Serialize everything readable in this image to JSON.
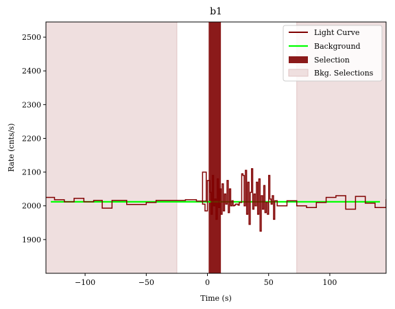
{
  "chart_data": {
    "type": "line",
    "title": "b1",
    "xlabel": "Time (s)",
    "ylabel": "Rate (cnts/s)",
    "xlim": [
      -132,
      146
    ],
    "ylim": [
      1800,
      2545
    ],
    "xticks": [
      -100,
      -50,
      0,
      50,
      100
    ],
    "yticks": [
      1900,
      2000,
      2100,
      2200,
      2300,
      2400,
      2500
    ],
    "grid": false,
    "legend_position": "top-right",
    "legend": [
      "Light Curve",
      "Background",
      "Selection",
      "Bkg. Selections"
    ],
    "colors": {
      "light_curve": "#800000",
      "background": "#00ff00",
      "selection": "#8b1a1a",
      "bkg_selection": "#efdfdf",
      "bkg_selection_edge": "#e0c4c4"
    },
    "background_level": 2012,
    "selection_range": [
      1,
      11
    ],
    "bkg_selection_ranges": [
      [
        -132,
        -25
      ],
      [
        73,
        146
      ]
    ],
    "light_curve": {
      "x": [
        -132,
        -125,
        -117,
        -109,
        -101,
        -93,
        -86,
        -78,
        -74,
        -66,
        -58,
        -50,
        -42,
        -34,
        -26,
        -18,
        -9,
        -1,
        -4,
        -2,
        0,
        2,
        3,
        4,
        5,
        6,
        7,
        8,
        9,
        10,
        11,
        12,
        13,
        14,
        15,
        16,
        17,
        18,
        19,
        20,
        21,
        22,
        23,
        24,
        25,
        26,
        27,
        28,
        29,
        30,
        31,
        32,
        33,
        34,
        35,
        36,
        37,
        38,
        39,
        40,
        41,
        42,
        43,
        44,
        45,
        46,
        47,
        48,
        49,
        50,
        51,
        52,
        53,
        54,
        55,
        57,
        65,
        73,
        81,
        89,
        97,
        105,
        113,
        121,
        129,
        137,
        146
      ],
      "y": [
        2025,
        2018,
        2012,
        2022,
        2012,
        2016,
        1993,
        2016,
        2016,
        2004,
        2004,
        2010,
        2016,
        2016,
        2016,
        2018,
        2014,
        2100,
        2005,
        1985,
        2075,
        2040,
        1975,
        2090,
        2000,
        2020,
        1960,
        2080,
        1995,
        2050,
        1975,
        2065,
        1985,
        2035,
        2005,
        2075,
        1980,
        2050,
        2000,
        2015,
        2000,
        2002,
        2005,
        2005,
        2002,
        2010,
        2010,
        2095,
        2090,
        2000,
        2105,
        1975,
        2070,
        1945,
        2040,
        2110,
        1990,
        2035,
        2000,
        2070,
        1975,
        2080,
        1925,
        2030,
        1990,
        2060,
        1980,
        2010,
        1975,
        2090,
        2020,
        2005,
        2030,
        1960,
        2015,
        2000,
        2015,
        2000,
        1995,
        2010,
        2025,
        2030,
        1990,
        2028,
        2008,
        1995,
        2020
      ]
    }
  }
}
